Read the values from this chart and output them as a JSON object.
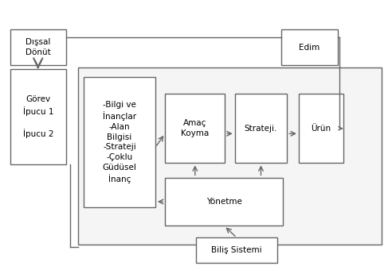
{
  "figsize": [
    4.92,
    3.35
  ],
  "dpi": 100,
  "bg": "#ffffff",
  "ec": "#666666",
  "lw": 1.0,
  "fs": 7.5,
  "ac": "#666666",
  "disal": [
    0.02,
    0.76,
    0.145,
    0.135
  ],
  "edim": [
    0.72,
    0.76,
    0.145,
    0.135
  ],
  "gorev": [
    0.02,
    0.38,
    0.145,
    0.365
  ],
  "outer": [
    0.195,
    0.075,
    0.785,
    0.675
  ],
  "bilgi": [
    0.21,
    0.215,
    0.185,
    0.5
  ],
  "amac": [
    0.42,
    0.385,
    0.155,
    0.265
  ],
  "strat": [
    0.6,
    0.385,
    0.135,
    0.265
  ],
  "urun": [
    0.765,
    0.385,
    0.115,
    0.265
  ],
  "yonet": [
    0.42,
    0.145,
    0.305,
    0.185
  ],
  "bilis": [
    0.5,
    0.005,
    0.21,
    0.095
  ],
  "disal_label": "Dışsal\nDönüt",
  "edim_label": "Edim",
  "gorev_label": "Görev\nİpucu 1\n\nİpucu 2",
  "bilgi_label": "-Bilgi ve\nİnançlar\n-Alan\nBilgisi\n-Strateji\n-Çoklu\nGüdüsel\nİnanç",
  "amac_label": "Amaç\nKoyma",
  "strat_label": "Strateji.",
  "urun_label": "Ürün",
  "yonet_label": "Yönetme",
  "bilis_label": "Biliş Sistemi"
}
